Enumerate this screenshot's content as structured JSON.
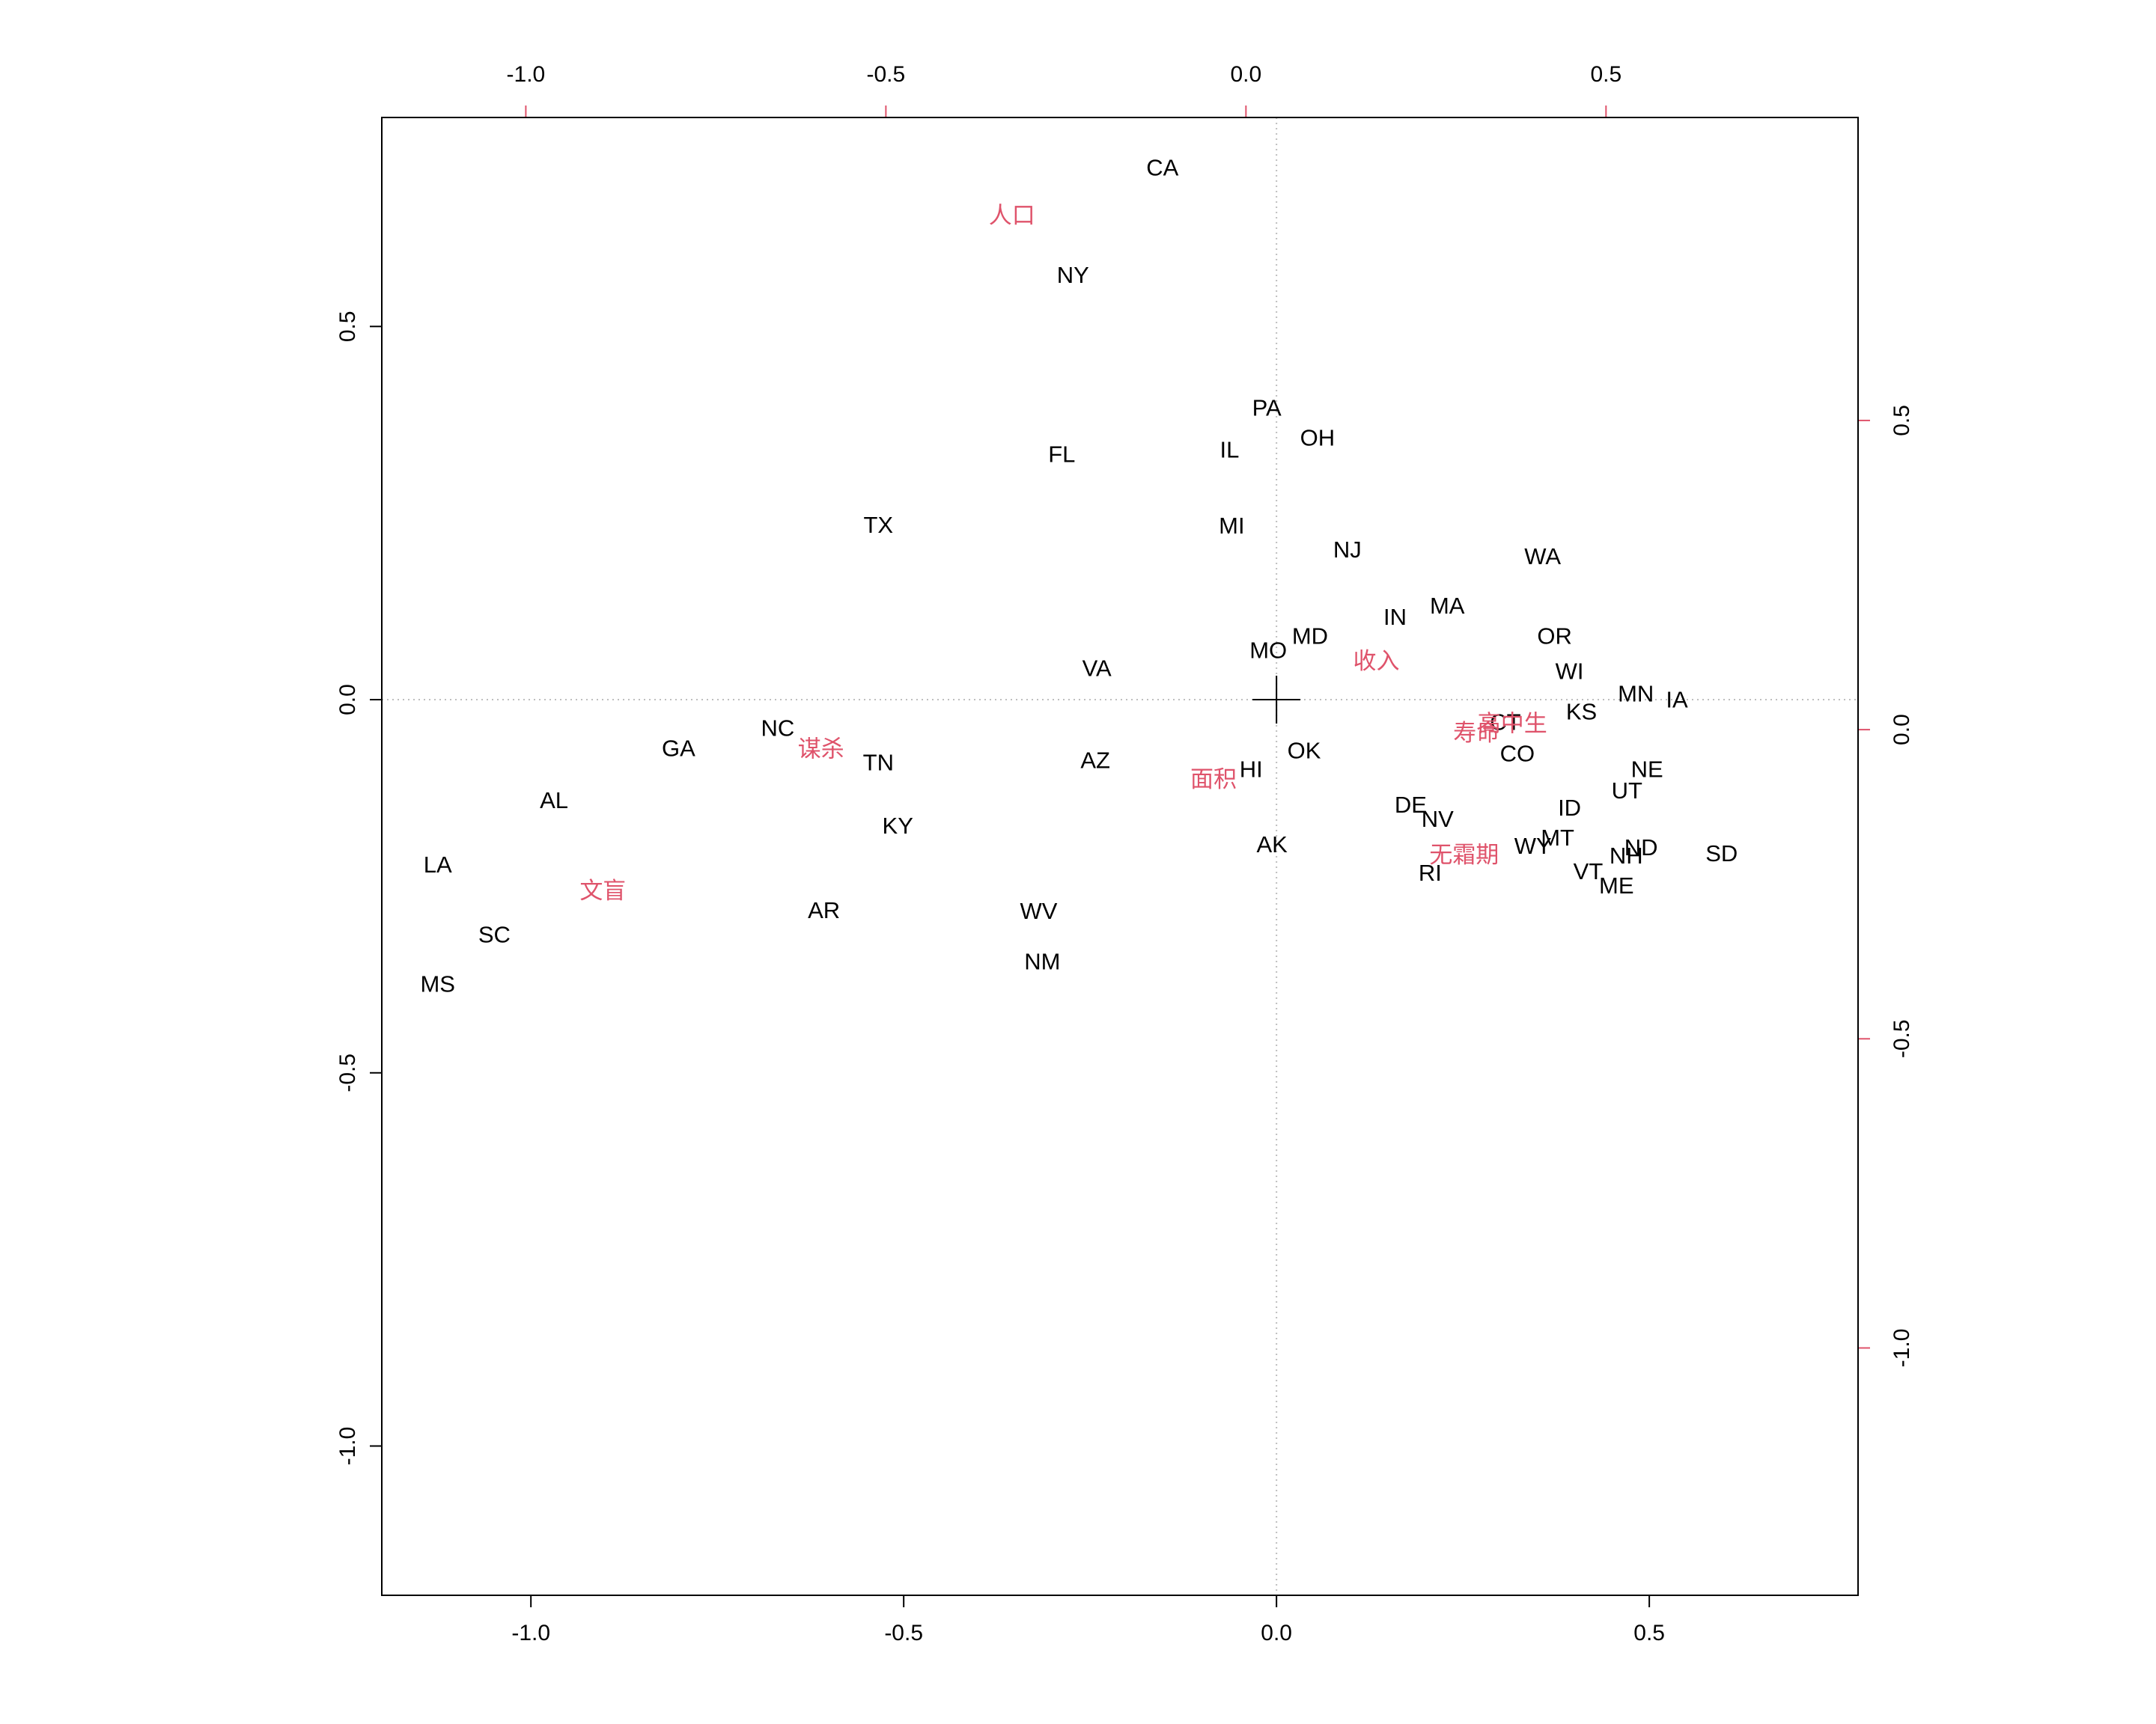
{
  "colors": {
    "points": "#000000",
    "variables": "#DF536B",
    "frame": "#000000",
    "origin": "#BEBEBE"
  },
  "chart_data": {
    "type": "scatter",
    "subtype": "biplot",
    "title": "",
    "xlabel": "",
    "ylabel": "",
    "grid": false,
    "origin_reference_lines": true,
    "axes": {
      "bottom": {
        "lim": [
          -1.2,
          0.78
        ],
        "ticks": [
          -1.0,
          -0.5,
          0.0,
          0.5
        ],
        "labels": [
          "-1.0",
          "-0.5",
          "0.0",
          "0.5"
        ]
      },
      "left": {
        "lim": [
          -1.2,
          0.78
        ],
        "ticks": [
          -1.0,
          -0.5,
          0.0,
          0.5
        ],
        "labels": [
          "-1.0",
          "-0.5",
          "0.0",
          "0.5"
        ]
      },
      "top": {
        "lim": [
          -1.2,
          0.85
        ],
        "ticks": [
          -1.0,
          -0.5,
          0.0,
          0.5
        ],
        "labels": [
          "-1.0",
          "-0.5",
          "0.0",
          "0.5"
        ]
      },
      "right": {
        "lim": [
          -1.4,
          0.99
        ],
        "ticks": [
          -1.0,
          -0.5,
          0.0,
          0.5
        ],
        "labels": [
          "-1.0",
          "-0.5",
          "0.0",
          "0.5"
        ]
      }
    },
    "series": [
      {
        "axes": "bottom-left",
        "points": [
          {
            "label": "CA",
            "x": -0.153,
            "y": 0.713
          },
          {
            "label": "NY",
            "x": -0.273,
            "y": 0.569
          },
          {
            "label": "PA",
            "x": -0.013,
            "y": 0.391
          },
          {
            "label": "OH",
            "x": 0.055,
            "y": 0.351
          },
          {
            "label": "FL",
            "x": -0.288,
            "y": 0.329
          },
          {
            "label": "IL",
            "x": -0.063,
            "y": 0.335
          },
          {
            "label": "TX",
            "x": -0.534,
            "y": 0.234
          },
          {
            "label": "MI",
            "x": -0.06,
            "y": 0.233
          },
          {
            "label": "NJ",
            "x": 0.095,
            "y": 0.201
          },
          {
            "label": "WA",
            "x": 0.357,
            "y": 0.192
          },
          {
            "label": "MA",
            "x": 0.229,
            "y": 0.126
          },
          {
            "label": "IN",
            "x": 0.159,
            "y": 0.111
          },
          {
            "label": "MD",
            "x": 0.045,
            "y": 0.085
          },
          {
            "label": "OR",
            "x": 0.373,
            "y": 0.085
          },
          {
            "label": "MO",
            "x": -0.011,
            "y": 0.066
          },
          {
            "label": "VA",
            "x": -0.241,
            "y": 0.042
          },
          {
            "label": "WI",
            "x": 0.393,
            "y": 0.038
          },
          {
            "label": "MN",
            "x": 0.482,
            "y": 0.008
          },
          {
            "label": "IA",
            "x": 0.537,
            "y": 0.0
          },
          {
            "label": "KS",
            "x": 0.409,
            "y": -0.016
          },
          {
            "label": "CT",
            "x": 0.307,
            "y": -0.03
          },
          {
            "label": "NC",
            "x": -0.669,
            "y": -0.038
          },
          {
            "label": "GA",
            "x": -0.802,
            "y": -0.065
          },
          {
            "label": "OK",
            "x": 0.037,
            "y": -0.068
          },
          {
            "label": "CO",
            "x": 0.323,
            "y": -0.072
          },
          {
            "label": "TN",
            "x": -0.534,
            "y": -0.084
          },
          {
            "label": "AZ",
            "x": -0.243,
            "y": -0.081
          },
          {
            "label": "HI",
            "x": -0.034,
            "y": -0.093
          },
          {
            "label": "NE",
            "x": 0.497,
            "y": -0.093
          },
          {
            "label": "UT",
            "x": 0.47,
            "y": -0.122
          },
          {
            "label": "AL",
            "x": -0.969,
            "y": -0.135
          },
          {
            "label": "DE",
            "x": 0.18,
            "y": -0.141
          },
          {
            "label": "ID",
            "x": 0.393,
            "y": -0.145
          },
          {
            "label": "NV",
            "x": 0.216,
            "y": -0.16
          },
          {
            "label": "KY",
            "x": -0.508,
            "y": -0.169
          },
          {
            "label": "MT",
            "x": 0.377,
            "y": -0.185
          },
          {
            "label": "AK",
            "x": -0.006,
            "y": -0.194
          },
          {
            "label": "WY",
            "x": 0.344,
            "y": -0.196
          },
          {
            "label": "ND",
            "x": 0.489,
            "y": -0.198
          },
          {
            "label": "NH",
            "x": 0.469,
            "y": -0.209
          },
          {
            "label": "SD",
            "x": 0.597,
            "y": -0.206
          },
          {
            "label": "LA",
            "x": -1.125,
            "y": -0.221
          },
          {
            "label": "RI",
            "x": 0.206,
            "y": -0.232
          },
          {
            "label": "VT",
            "x": 0.418,
            "y": -0.23
          },
          {
            "label": "ME",
            "x": 0.456,
            "y": -0.249
          },
          {
            "label": "AR",
            "x": -0.607,
            "y": -0.282
          },
          {
            "label": "WV",
            "x": -0.319,
            "y": -0.283
          },
          {
            "label": "SC",
            "x": -1.049,
            "y": -0.315
          },
          {
            "label": "NM",
            "x": -0.314,
            "y": -0.351
          },
          {
            "label": "MS",
            "x": -1.125,
            "y": -0.381
          }
        ]
      },
      {
        "axes": "top-right",
        "points": [
          {
            "label": "人口",
            "x": -0.325,
            "y": 0.831
          },
          {
            "label": "收入",
            "x": 0.181,
            "y": 0.11
          },
          {
            "label": "高中生",
            "x": 0.37,
            "y": 0.009
          },
          {
            "label": "寿命",
            "x": 0.32,
            "y": -0.006
          },
          {
            "label": "谋杀",
            "x": -0.59,
            "y": -0.032
          },
          {
            "label": "面积",
            "x": -0.045,
            "y": -0.081
          },
          {
            "label": "无霜期",
            "x": 0.303,
            "y": -0.203
          },
          {
            "label": "文盲",
            "x": -0.893,
            "y": -0.261
          }
        ]
      }
    ]
  }
}
